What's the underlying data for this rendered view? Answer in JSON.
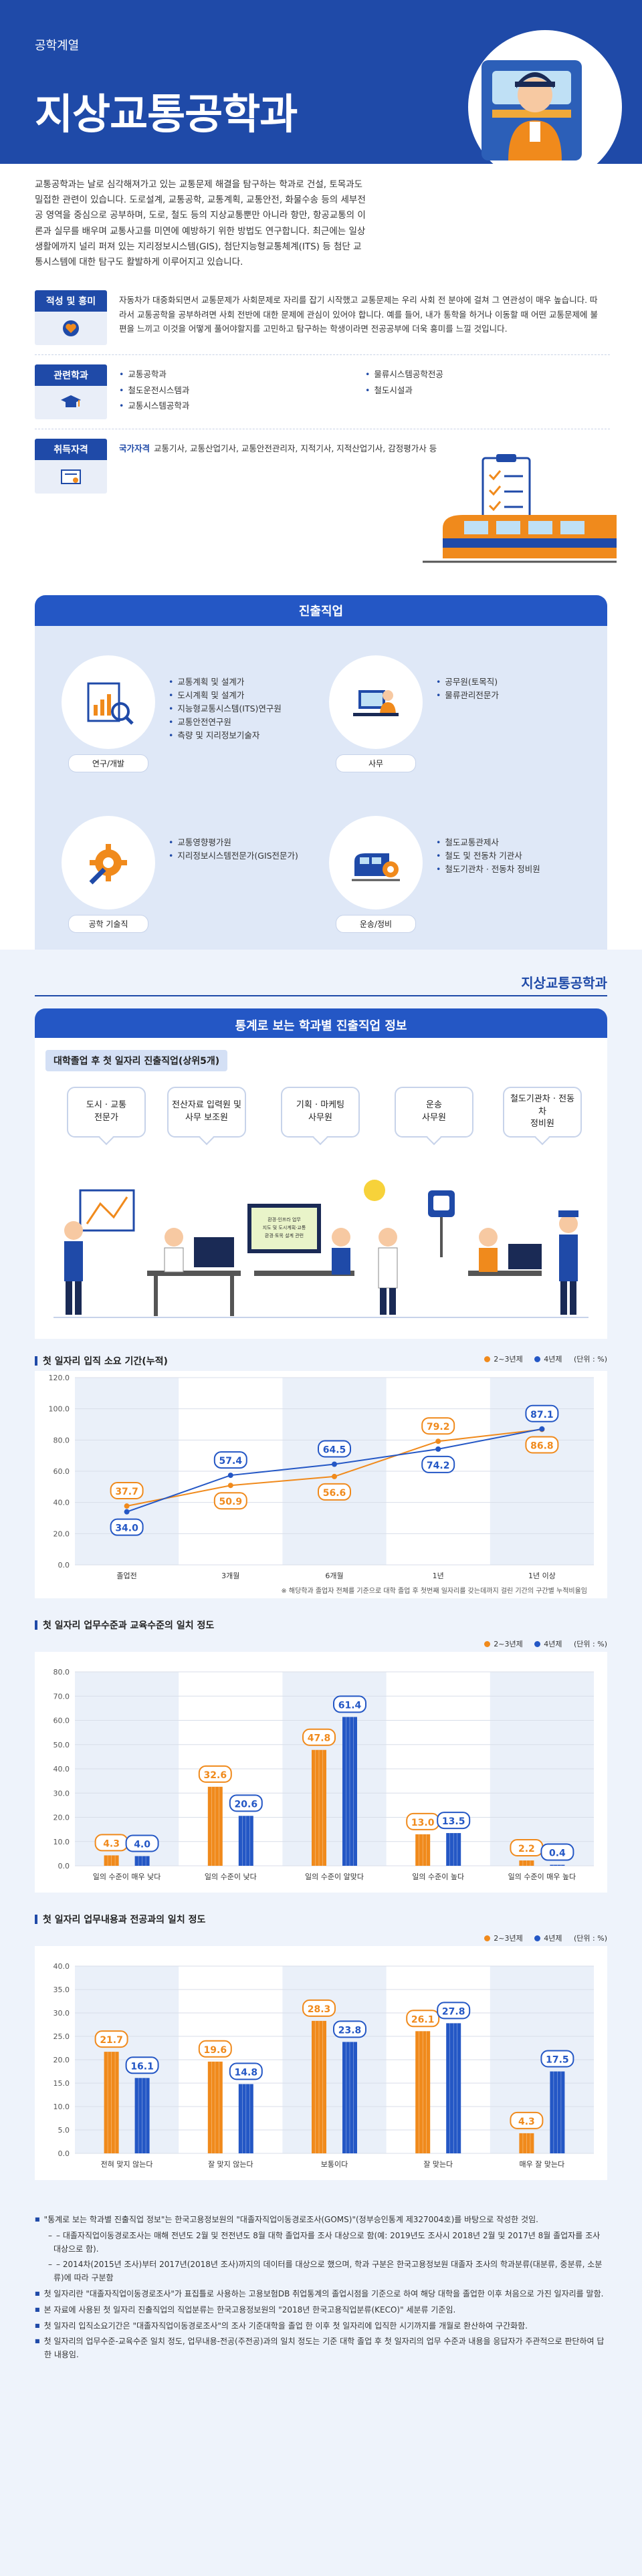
{
  "header": {
    "category": "공학계열",
    "title": "지상교통공학과"
  },
  "intro": "교통공학과는 날로 심각해져가고 있는 교통문제 해결을 탐구하는 학과로 건설, 토목과도 밀접한 관련이 있습니다. 도로설계, 교통공학, 교통계획, 교통안전, 화물수송 등의 세부전공 영역을 중심으로 공부하며, 도로, 철도 등의 지상교통뿐만 아니라 항만, 항공교통의 이론과 실무를 배우며 교통사고를 미연에 예방하기 위한 방법도 연구합니다. 최근에는 일상생활에까지 널리 퍼져 있는 지리정보시스템(GIS), 첨단지능형교통체계(ITS) 등 첨단 교통시스템에 대한 탐구도 활발하게 이루어지고 있습니다.",
  "aptitude": {
    "label": "적성 및 흥미",
    "text": "자동차가 대중화되면서 교통문제가 사회문제로 자리를 잡기 시작했고 교통문제는 우리 사회 전 분야에 걸쳐 그 연관성이 매우 높습니다. 따라서 교통공학을 공부하려면 사회 전반에 대한 문제에 관심이 있어야 합니다. 예를 들어, 내가 통학을 하거나 이동할 때 어떤 교통문제에 불편을 느끼고 이것을 어떻게 풀어야할지를 고민하고 탐구하는 학생이라면 전공공부에 더욱 흥미를 느낄 것입니다."
  },
  "related": {
    "label": "관련학과",
    "items": [
      "교통공학과",
      "물류시스템공학전공",
      "철도운전시스템과",
      "철도시설과",
      "교통시스템공학과"
    ]
  },
  "certs": {
    "label": "취득자격",
    "kind": "국가자격",
    "text": "교통기사, 교통산업기사, 교통안전관리자, 지적기사, 지적산업기사, 감정평가사 등"
  },
  "career": {
    "title": "진출직업",
    "groups": [
      {
        "label": "연구/개발",
        "items": [
          "교통계획 및 설계가",
          "도시계획 및 설계가",
          "지능형교통시스템(ITS)연구원",
          "교통안전연구원",
          "측량 및 지리정보기술자"
        ]
      },
      {
        "label": "사무",
        "items": [
          "공무원(토목직)",
          "물류관리전문가"
        ]
      },
      {
        "label": "공학 기술직",
        "items": [
          "교통영향평가원",
          "지리정보시스템전문가(GIS전문가)"
        ]
      },
      {
        "label": "운송/정비",
        "items": [
          "철도교통관제사",
          "철도 및 전동차 기관사",
          "철도기관차 · 전동차 정비원"
        ]
      }
    ]
  },
  "stats": {
    "brand": "지상교통공학과",
    "title": "통계로 보는 학과별 진출직업 정보",
    "top5_title": "대학졸업 후 첫 일자리 진출직업(상위5개)",
    "top5": [
      "도시 · 교통\n전문가",
      "전산자료 입력원 및\n사무 보조원",
      "기획 · 마케팅\n사무원",
      "운송\n사무원",
      "철도기관차 · 전동차\n정비원"
    ],
    "monitor_text": "환경·인프라 업무\n지도 및 도시계획·교통\n환경·토목 설계 관련"
  },
  "legend": {
    "a": "2~3년제",
    "b": "4년제",
    "unit": "(단위 : %)"
  },
  "colors": {
    "orange": "#f08a1c",
    "blue": "#2457c5"
  },
  "chart_data": [
    {
      "type": "line",
      "title": "첫 일자리 입직 소요 기간(누적)",
      "categories": [
        "졸업전",
        "3개월",
        "6개월",
        "1년",
        "1년 이상"
      ],
      "series": [
        {
          "name": "2~3년제",
          "values": [
            37.7,
            50.9,
            56.6,
            79.2,
            86.8
          ]
        },
        {
          "name": "4년제",
          "values": [
            34.0,
            57.4,
            64.5,
            74.2,
            87.1
          ]
        }
      ],
      "ylim": [
        0,
        120
      ],
      "yticks": [
        "0.0",
        "20.0",
        "40.0",
        "60.0",
        "80.0",
        "100.0",
        "120.0"
      ],
      "note": "※ 해당학과 졸업자 전체를 기준으로 대학 졸업 후 첫번째 일자리를 갖는데까지 걸린 기간의 구간별 누적비율임"
    },
    {
      "type": "bar",
      "title": "첫 일자리 업무수준과 교육수준의 일치 정도",
      "categories": [
        "일의 수준이 매우 낮다",
        "일의 수준이 낮다",
        "일의 수준이 알맞다",
        "일의 수준이 높다",
        "일의 수준이 매우 높다"
      ],
      "series": [
        {
          "name": "2~3년제",
          "values": [
            4.3,
            32.6,
            47.8,
            13.0,
            2.2
          ]
        },
        {
          "name": "4년제",
          "values": [
            4.0,
            20.6,
            61.4,
            13.5,
            0.4
          ]
        }
      ],
      "ylim": [
        0,
        80
      ],
      "yticks": [
        "0.0",
        "10.0",
        "20.0",
        "30.0",
        "40.0",
        "50.0",
        "60.0",
        "70.0",
        "80.0"
      ]
    },
    {
      "type": "bar",
      "title": "첫 일자리 업무내용과 전공과의 일치 정도",
      "categories": [
        "전혀 맞지 않는다",
        "잘 맞지 않는다",
        "보통이다",
        "잘 맞는다",
        "매우 잘 맞는다"
      ],
      "series": [
        {
          "name": "2~3년제",
          "values": [
            21.7,
            19.6,
            28.3,
            26.1,
            4.3
          ]
        },
        {
          "name": "4년제",
          "values": [
            16.1,
            14.8,
            23.8,
            27.8,
            17.5
          ]
        }
      ],
      "ylim": [
        0,
        40
      ],
      "yticks": [
        "0.0",
        "5.0",
        "10.0",
        "15.0",
        "20.0",
        "25.0",
        "30.0",
        "35.0",
        "40.0"
      ]
    }
  ],
  "notes": [
    "\"통계로 보는 학과별 진출직업 정보\"는 한국고용정보원의 \"대졸자직업이동경로조사(GOMS)\"(정부승인통계 제327004호)를 바탕으로 작성한 것임.",
    "– 대졸자직업이동경로조사는 매해 전년도 2월 및 전전년도 8월 대학 졸업자를 조사 대상으로 함(예: 2019년도 조사시 2018년 2월 및 2017년 8월 졸업자를 조사대상으로 함).",
    "– 2014차(2015년 조사)부터 2017년(2018년 조사)까지의 데이터를 대상으로 했으며, 학과 구분은 한국고용정보원 대졸자 조사의 학과분류(대분류, 중분류, 소분류)에 따라 구분함",
    "첫 일자리란 \"대졸자직업이동경로조사\"가 표집틀로 사용하는 고용보험DB 취업통계의 졸업시점을 기준으로 하여 해당 대학을 졸업한 이후 처음으로 가진 일자리를 말함.",
    "본 자료에 사용된 첫 일자리 진출직업의 직업분류는 한국고용정보원의 \"2018년 한국고용직업분류(KECO)\" 세분류 기준임.",
    "첫 일자리 입직소요기간은 \"대졸자직업이동경로조사\"의 조사 기준대학을 졸업 한 이후 첫 일자리에 입직한 시기까지를 개월로 환산하여 구간화함.",
    "첫 일자리의 업무수준-교육수준 일치 정도, 업무내용-전공(주전공)과의 일치 정도는 기준 대학 졸업 후 첫 일자리의 업무 수준과 내용을 응답자가 주관적으로 판단하여 답한 내용임."
  ]
}
